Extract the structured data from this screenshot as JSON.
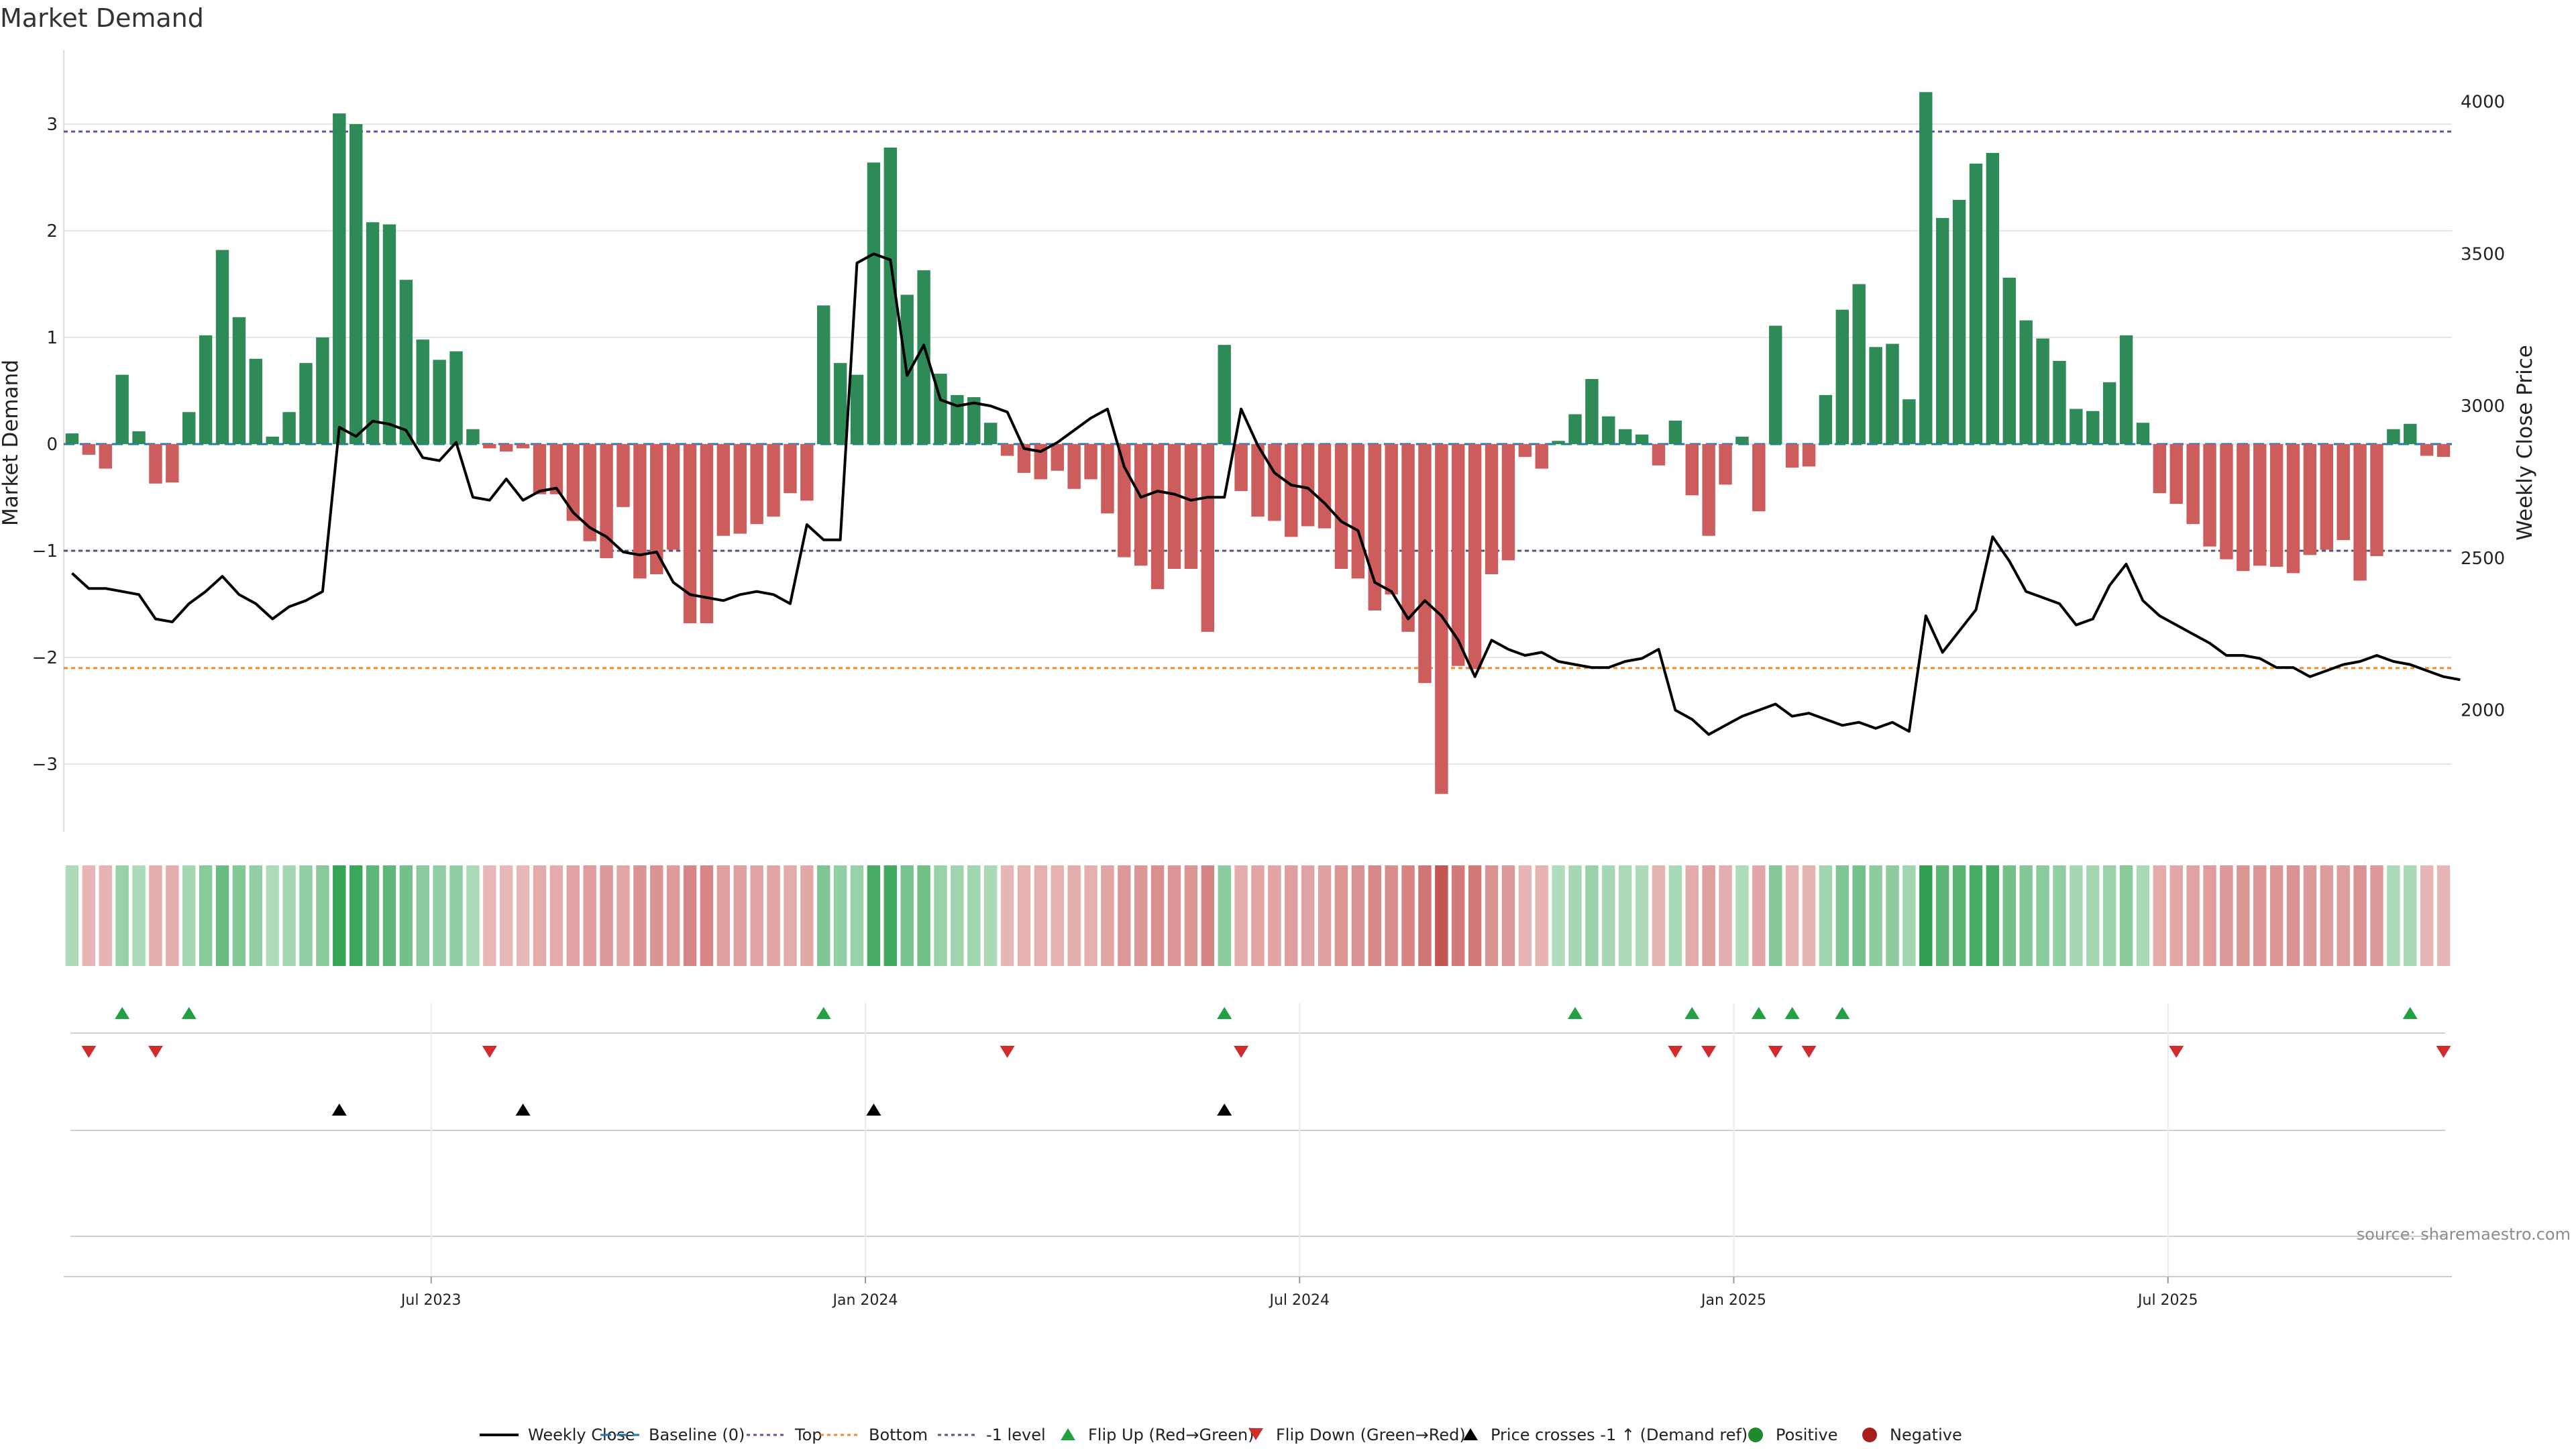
{
  "chart_data": {
    "type": "bar",
    "title": "Market Demand",
    "ylabel": "Market Demand",
    "y2label": "Weekly Close Price",
    "ylim": [
      -3.6,
      3.7
    ],
    "y2lim": [
      1600,
      4180
    ],
    "yticks": [
      "3",
      "2",
      "1",
      "0",
      "−1",
      "−2",
      "−3"
    ],
    "ytick_values": [
      3,
      2,
      1,
      0,
      -1,
      -2,
      -3
    ],
    "y2ticks": [
      "4000",
      "3500",
      "3000",
      "2500",
      "2000"
    ],
    "y2tick_values": [
      4000,
      3500,
      3000,
      2500,
      2000
    ],
    "xticks": [
      "Jul 2023",
      "Jan 2024",
      "Jul 2024",
      "Jan 2025",
      "Jul 2025"
    ],
    "xtick_week_index": [
      22,
      48,
      74,
      100,
      126
    ],
    "levels": {
      "top": 2.93,
      "bottom": -2.1,
      "minus_one": -1.0
    },
    "demand": [
      0.1,
      -0.1,
      -0.23,
      0.65,
      0.12,
      -0.37,
      -0.36,
      0.3,
      1.02,
      1.82,
      1.19,
      0.8,
      0.07,
      0.3,
      0.76,
      1.0,
      3.1,
      3.0,
      2.08,
      2.06,
      1.54,
      0.98,
      0.79,
      0.87,
      0.14,
      -0.04,
      -0.07,
      -0.04,
      -0.47,
      -0.47,
      -0.72,
      -0.91,
      -1.07,
      -0.59,
      -1.26,
      -1.22,
      -0.99,
      -1.68,
      -1.68,
      -0.86,
      -0.84,
      -0.75,
      -0.68,
      -0.46,
      -0.53,
      1.3,
      0.76,
      0.65,
      2.64,
      2.78,
      1.4,
      1.63,
      0.66,
      0.46,
      0.44,
      0.2,
      -0.11,
      -0.27,
      -0.33,
      -0.25,
      -0.42,
      -0.33,
      -0.65,
      -1.06,
      -1.14,
      -1.36,
      -1.17,
      -1.17,
      -1.76,
      0.93,
      -0.44,
      -0.68,
      -0.72,
      -0.87,
      -0.77,
      -0.79,
      -1.17,
      -1.26,
      -1.56,
      -1.41,
      -1.76,
      -2.24,
      -3.28,
      -2.08,
      -2.11,
      -1.22,
      -1.09,
      -0.12,
      -0.23,
      0.03,
      0.28,
      0.61,
      0.26,
      0.14,
      0.09,
      -0.2,
      0.22,
      -0.48,
      -0.86,
      -0.38,
      0.07,
      -0.63,
      1.11,
      -0.22,
      -0.21,
      0.46,
      1.26,
      1.5,
      0.91,
      0.94,
      0.42,
      3.3,
      2.12,
      2.29,
      2.63,
      2.73,
      1.56,
      1.16,
      0.99,
      0.78,
      0.33,
      0.31,
      0.58,
      1.02,
      0.2,
      -0.46,
      -0.56,
      -0.75,
      -0.96,
      -1.08,
      -1.19,
      -1.14,
      -1.15,
      -1.21,
      -1.04,
      -0.99,
      -0.9,
      -1.28,
      -1.05,
      0.14,
      0.19,
      -0.11,
      -0.12
    ],
    "weekly_close": [
      2450,
      2400,
      2400,
      2390,
      2380,
      2300,
      2290,
      2350,
      2390,
      2440,
      2380,
      2350,
      2300,
      2340,
      2360,
      2390,
      2930,
      2900,
      2950,
      2940,
      2920,
      2830,
      2820,
      2880,
      2700,
      2690,
      2760,
      2690,
      2720,
      2730,
      2650,
      2600,
      2570,
      2520,
      2510,
      2520,
      2420,
      2380,
      2370,
      2360,
      2380,
      2390,
      2380,
      2350,
      2610,
      2560,
      2560,
      3470,
      3500,
      3480,
      3100,
      3200,
      3020,
      3000,
      3010,
      3000,
      2980,
      2860,
      2850,
      2880,
      2920,
      2960,
      2990,
      2800,
      2700,
      2720,
      2710,
      2690,
      2700,
      2700,
      2990,
      2870,
      2780,
      2740,
      2730,
      2680,
      2620,
      2590,
      2420,
      2390,
      2300,
      2360,
      2310,
      2230,
      2110,
      2230,
      2200,
      2180,
      2190,
      2160,
      2150,
      2140,
      2140,
      2160,
      2170,
      2200,
      2000,
      1970,
      1920,
      1950,
      1980,
      2000,
      2020,
      1980,
      1990,
      1970,
      1950,
      1960,
      1940,
      1960,
      1930,
      2310,
      2190,
      2260,
      2330,
      2570,
      2490,
      2390,
      2370,
      2350,
      2280,
      2300,
      2410,
      2480,
      2360,
      2310,
      2280,
      2250,
      2220,
      2180,
      2180,
      2170,
      2140,
      2140,
      2110,
      2130,
      2150,
      2160,
      2180,
      2160,
      2150,
      2130,
      2110,
      2100
    ],
    "flip_up": [
      3,
      7,
      45,
      69,
      90,
      97,
      101,
      103,
      106,
      140
    ],
    "flip_down": [
      1,
      5,
      25,
      56,
      70,
      96,
      98,
      102,
      104,
      126,
      142
    ],
    "price_cross_up": [
      16,
      27,
      48,
      69
    ]
  },
  "colors": {
    "positive": "#2e8b57",
    "negative": "#cd5c5c",
    "flip_up": "#22a044",
    "flip_down": "#d22b2b",
    "top_line": "#5b57a6",
    "bottom_line": "#f08c28",
    "minus_one_line": "#555577",
    "baseline": "#1f77b4"
  },
  "legend": [
    {
      "label": "Weekly Close",
      "kind": "line-black"
    },
    {
      "label": "Baseline (0)",
      "kind": "line-blue-dash"
    },
    {
      "label": "Top",
      "kind": "line-purple-dot"
    },
    {
      "label": "Bottom",
      "kind": "line-orange-dot"
    },
    {
      "label": "-1 level",
      "kind": "line-gray-dot"
    },
    {
      "label": "Flip Up (Red→Green)",
      "kind": "tri-up-green"
    },
    {
      "label": "Flip Down (Green→Red)",
      "kind": "tri-down-red"
    },
    {
      "label": "Price crosses -1 ↑ (Demand ref)",
      "kind": "tri-up-black"
    },
    {
      "label": "Positive",
      "kind": "dot-green"
    },
    {
      "label": "Negative",
      "kind": "dot-red"
    }
  ],
  "source": "source: sharemaestro.com"
}
